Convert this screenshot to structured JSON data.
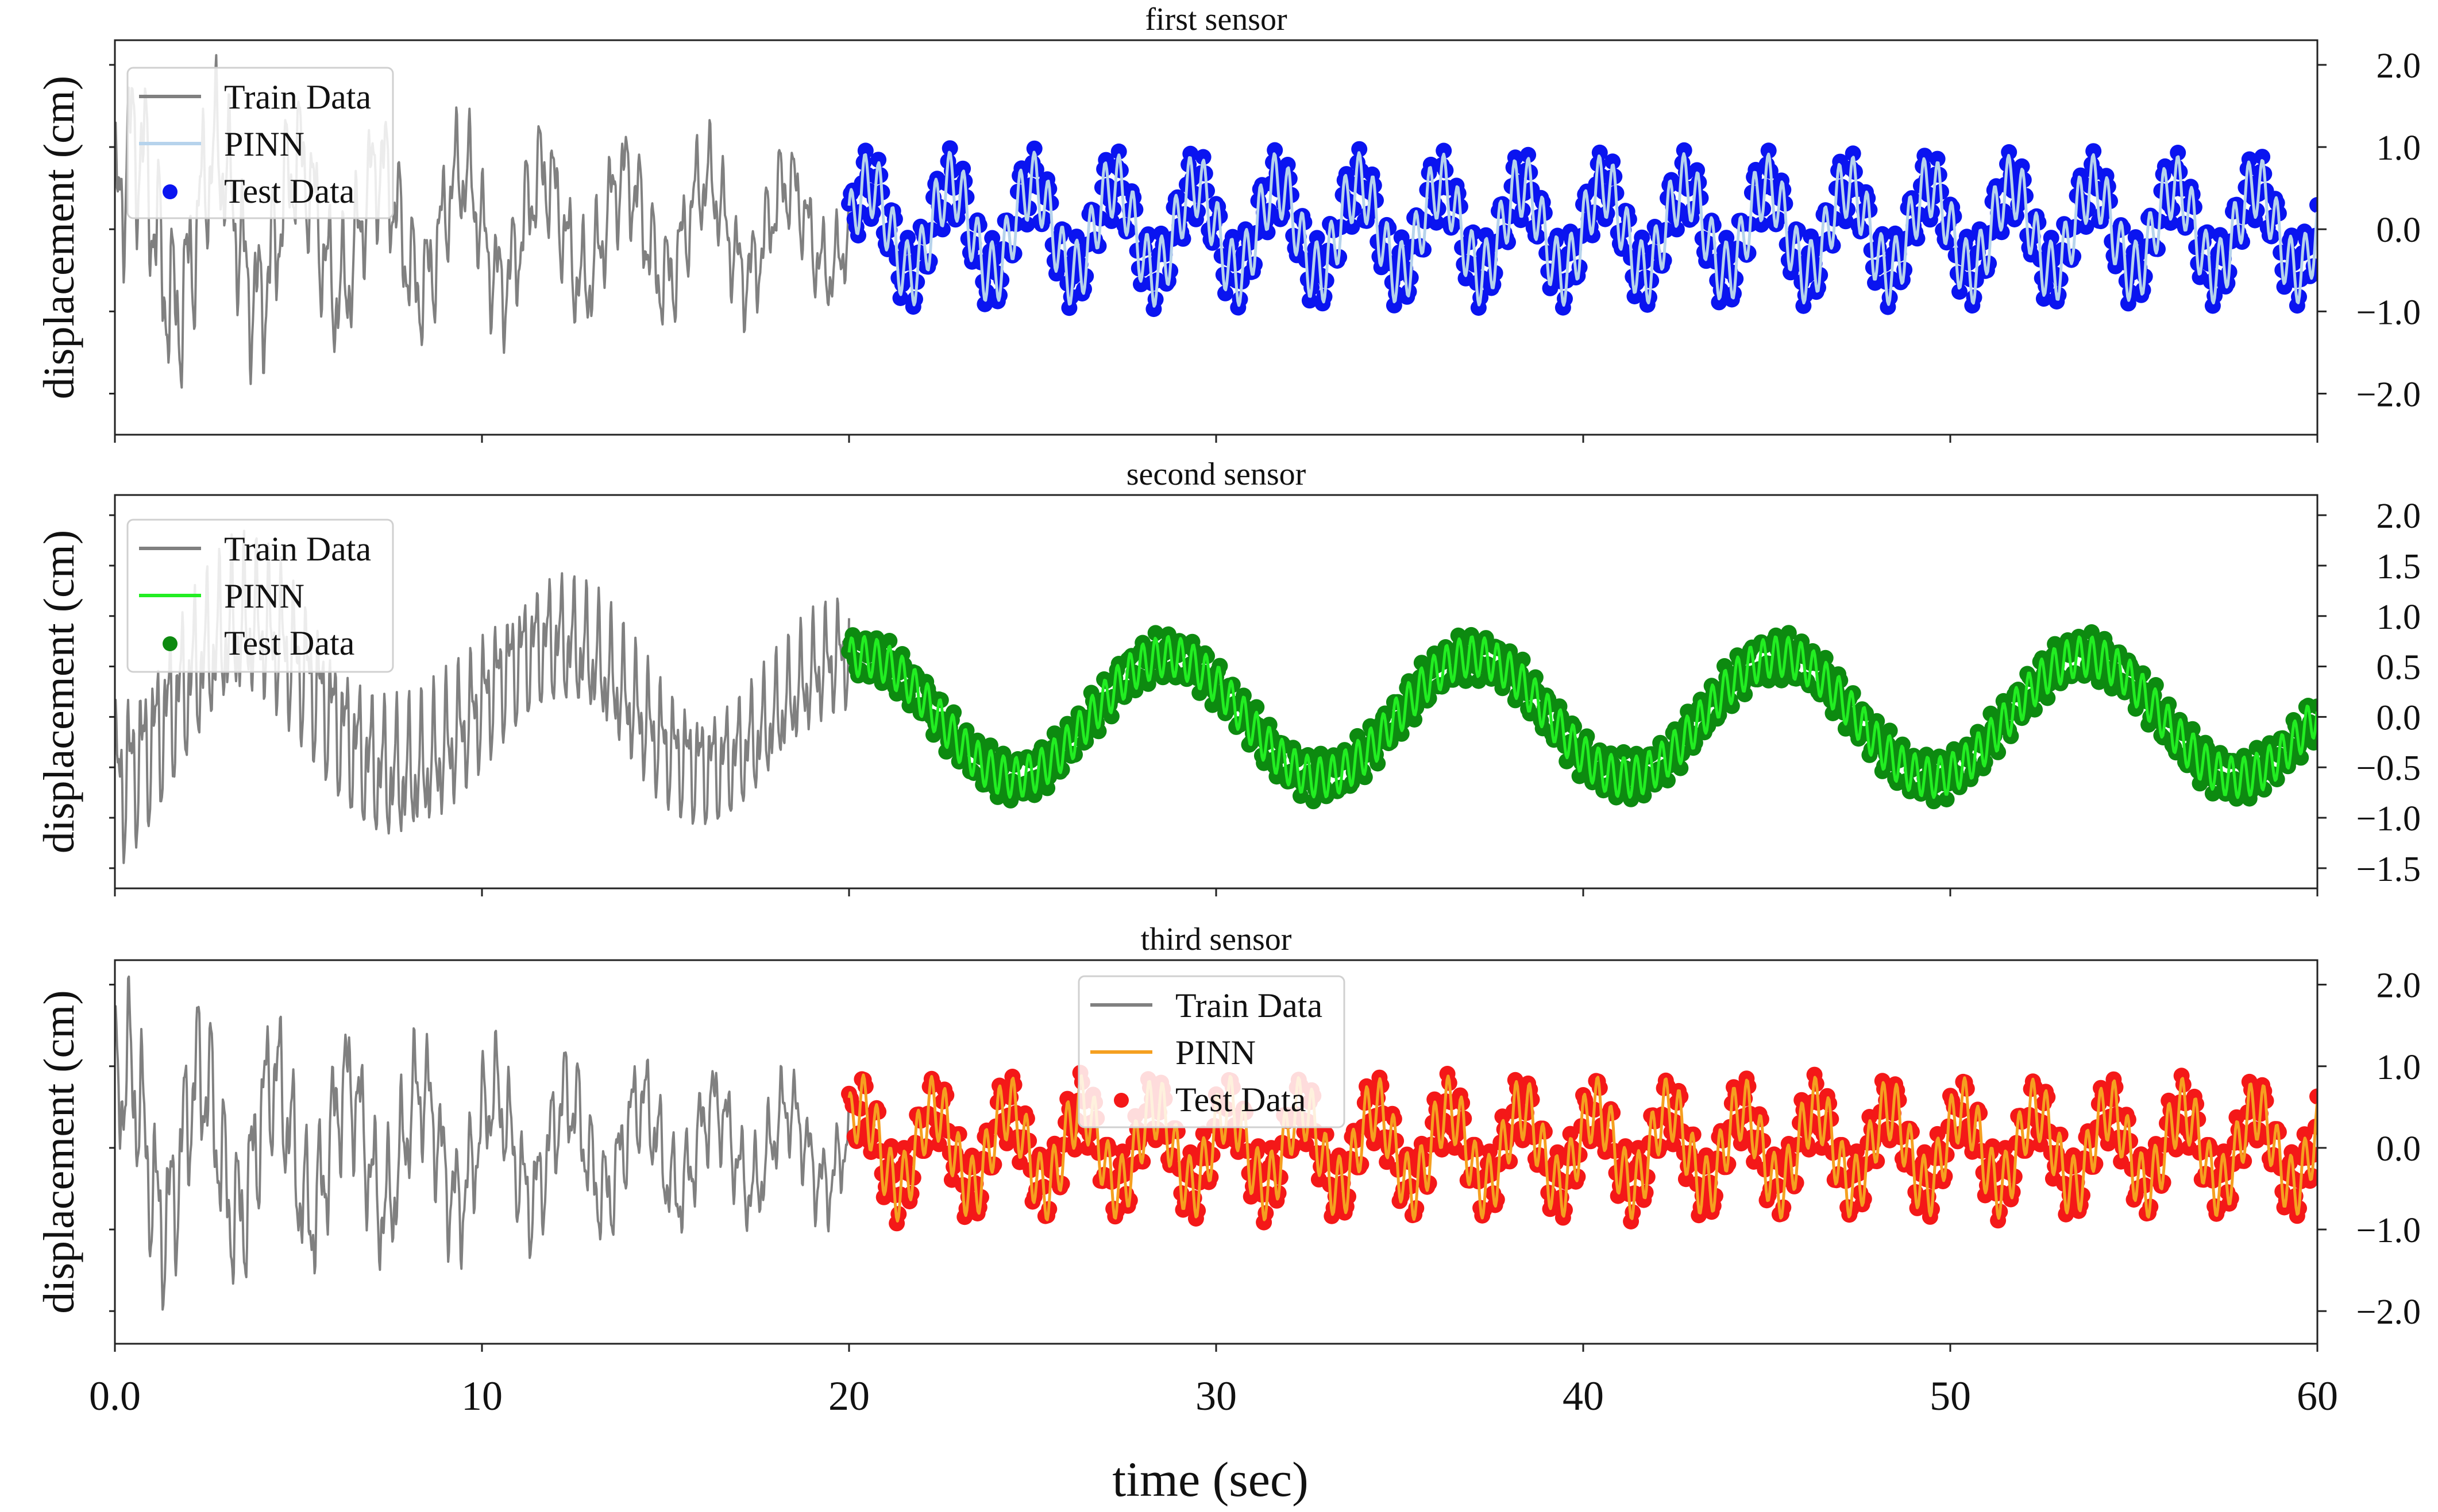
{
  "chart_data": [
    {
      "type": "line",
      "title": "first sensor",
      "ylabel": "displacement (cm)",
      "xlabel": "",
      "xlim": [
        0,
        60
      ],
      "ylim": [
        -2.5,
        2.3
      ],
      "xticks": [
        0,
        10,
        20,
        30,
        40,
        50,
        60
      ],
      "yticks": [
        2.0,
        1.0,
        0.0,
        -1.0,
        -2.0
      ],
      "ytick_labels": [
        "2.0",
        "1.0",
        "0.0",
        "−1.0",
        "−2.0"
      ],
      "yaxis_side": "right",
      "legend_position": "top-left",
      "legend": [
        "Train Data",
        "PINN",
        "Test Data"
      ],
      "series": [
        {
          "name": "Train Data",
          "color": "#808080",
          "style": "line",
          "range": [
            0,
            20
          ],
          "components": [
            [
              0.55,
              0.45,
              0.0
            ],
            [
              0.4,
              2.6,
              0.8
            ],
            [
              0.22,
              5.8,
              1.6
            ],
            [
              0.1,
              11.3,
              0.4
            ]
          ],
          "envelope": [
            [
              0,
              2.0
            ],
            [
              1.5,
              1.8
            ],
            [
              4,
              1.6
            ],
            [
              8,
              1.3
            ],
            [
              12,
              1.2
            ],
            [
              16,
              1.1
            ],
            [
              20,
              0.9
            ]
          ],
          "offset": 0
        },
        {
          "name": "PINN",
          "color": "#b6d3ec",
          "style": "line",
          "range": [
            20,
            60
          ],
          "components": [
            [
              0.55,
              0.45,
              0.0
            ],
            [
              0.4,
              2.6,
              0.8
            ]
          ],
          "envelope": [
            [
              20,
              1.0
            ],
            [
              60,
              0.95
            ]
          ],
          "offset": 0
        },
        {
          "name": "Test Data",
          "color": "#0a14f0",
          "style": "marker",
          "range": [
            20,
            60
          ],
          "components": [
            [
              0.55,
              0.45,
              0.0
            ],
            [
              0.4,
              2.6,
              0.8
            ],
            [
              0.06,
              11.3,
              0.4
            ]
          ],
          "envelope": [
            [
              20,
              1.0
            ],
            [
              60,
              0.95
            ]
          ],
          "offset": 0
        }
      ]
    },
    {
      "type": "line",
      "title": "second sensor",
      "ylabel": "displacement (cm)",
      "xlabel": "",
      "xlim": [
        0,
        60
      ],
      "ylim": [
        -1.7,
        2.2
      ],
      "xticks": [
        0,
        10,
        20,
        30,
        40,
        50,
        60
      ],
      "yticks": [
        2.0,
        1.5,
        1.0,
        0.5,
        0.0,
        -0.5,
        -1.0,
        -1.5
      ],
      "ytick_labels": [
        "2.0",
        "1.5",
        "1.0",
        "0.5",
        "0.0",
        "−0.5",
        "−1.0",
        "−1.5"
      ],
      "yaxis_side": "right",
      "legend_position": "top-left",
      "legend": [
        "Train Data",
        "PINN",
        "Test Data"
      ],
      "series": [
        {
          "name": "Train Data",
          "color": "#808080",
          "style": "line",
          "range": [
            0,
            20
          ],
          "components": [
            [
              0.55,
              0.12,
              -1.2
            ],
            [
              0.35,
              2.9,
              0.3
            ],
            [
              0.25,
              6.0,
              1.1
            ],
            [
              0.1,
              12.0,
              0.2
            ]
          ],
          "envelope": [
            [
              0,
              1.5
            ],
            [
              4,
              1.4
            ],
            [
              10,
              1.2
            ],
            [
              20,
              1.0
            ]
          ],
          "offset": 0.1
        },
        {
          "name": "PINN",
          "color": "#22ee22",
          "style": "line",
          "range": [
            20,
            60
          ],
          "components": [
            [
              0.6,
              0.12,
              -1.2
            ],
            [
              0.2,
              2.9,
              0.3
            ]
          ],
          "envelope": [
            [
              20,
              1.0
            ],
            [
              60,
              1.0
            ]
          ],
          "offset": 0
        },
        {
          "name": "Test Data",
          "color": "#0d8a10",
          "style": "marker",
          "range": [
            20,
            60
          ],
          "components": [
            [
              0.6,
              0.12,
              -1.2
            ],
            [
              0.2,
              2.9,
              0.3
            ],
            [
              0.05,
              12.0,
              0.2
            ]
          ],
          "envelope": [
            [
              20,
              1.0
            ],
            [
              60,
              1.0
            ]
          ],
          "offset": 0
        }
      ]
    },
    {
      "type": "line",
      "title": "third sensor",
      "ylabel": "displacement (cm)",
      "xlabel": "time (sec)",
      "xlim": [
        0,
        60
      ],
      "ylim": [
        -2.4,
        2.3
      ],
      "xticks": [
        0,
        10,
        20,
        30,
        40,
        50,
        60
      ],
      "xtick_labels": [
        "0.0",
        "10",
        "20",
        "30",
        "40",
        "50",
        "60"
      ],
      "yticks": [
        2.0,
        1.0,
        0.0,
        -1.0,
        -2.0
      ],
      "ytick_labels": [
        "2.0",
        "1.0",
        "0.0",
        "−1.0",
        "−2.0"
      ],
      "yaxis_side": "right",
      "legend_position": "top-center",
      "legend": [
        "Train Data",
        "PINN",
        "Test Data"
      ],
      "series": [
        {
          "name": "Train Data",
          "color": "#808080",
          "style": "line",
          "range": [
            0,
            20
          ],
          "components": [
            [
              0.5,
              0.5,
              0.5
            ],
            [
              0.4,
              2.7,
              1.2
            ],
            [
              0.2,
              5.8,
              0.4
            ],
            [
              0.1,
              11.3,
              1.0
            ]
          ],
          "envelope": [
            [
              0,
              1.9
            ],
            [
              4,
              1.7
            ],
            [
              10,
              1.3
            ],
            [
              20,
              0.9
            ]
          ],
          "offset": 0
        },
        {
          "name": "PINN",
          "color": "#f5a020",
          "style": "line",
          "range": [
            20,
            60
          ],
          "components": [
            [
              0.5,
              0.5,
              0.5
            ],
            [
              0.4,
              2.7,
              1.2
            ]
          ],
          "envelope": [
            [
              20,
              1.0
            ],
            [
              60,
              0.95
            ]
          ],
          "offset": 0
        },
        {
          "name": "Test Data",
          "color": "#f41818",
          "style": "marker",
          "range": [
            20,
            60
          ],
          "components": [
            [
              0.5,
              0.5,
              0.5
            ],
            [
              0.4,
              2.7,
              1.2
            ],
            [
              0.06,
              11.3,
              1.0
            ]
          ],
          "envelope": [
            [
              20,
              1.0
            ],
            [
              60,
              0.95
            ]
          ],
          "offset": 0
        }
      ]
    }
  ]
}
